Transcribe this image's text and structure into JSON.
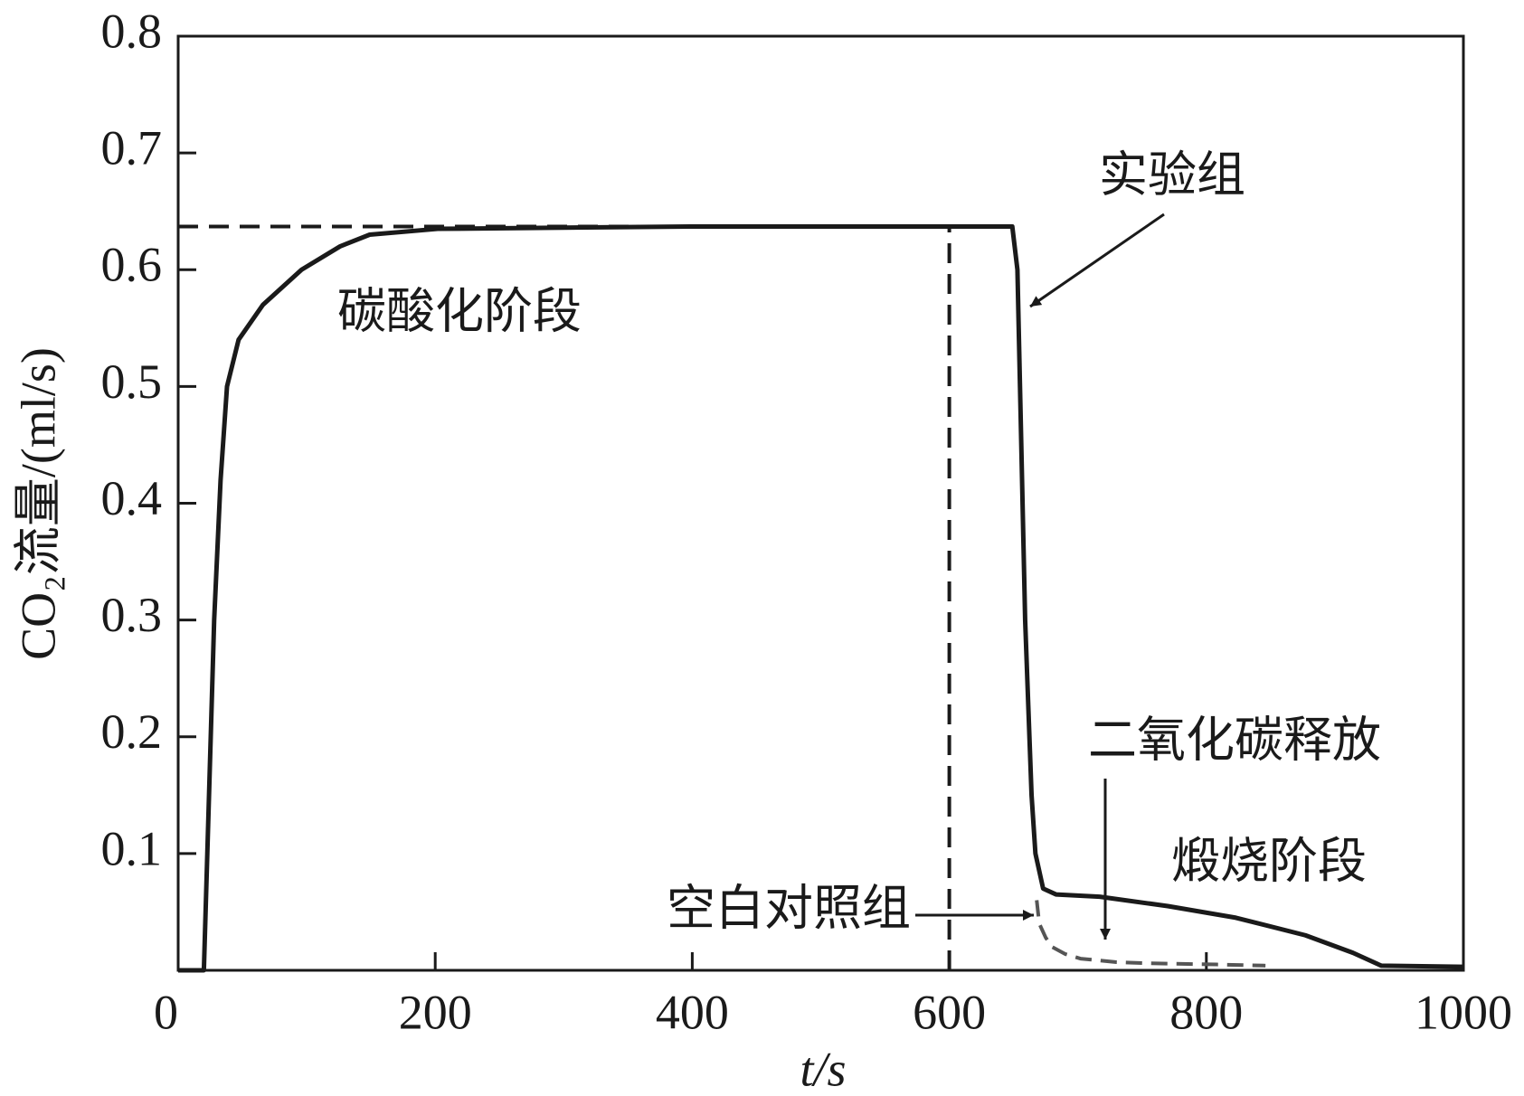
{
  "chart_data": {
    "type": "line",
    "x_label": "t/s",
    "y_label": "CO₂流量/(ml/s)",
    "xlim": [
      0,
      1000
    ],
    "ylim": [
      0,
      0.8
    ],
    "xticks": [
      0,
      200,
      400,
      600,
      800,
      1000
    ],
    "yticks": [
      0.1,
      0.2,
      0.3,
      0.4,
      0.5,
      0.6,
      0.7,
      0.8
    ],
    "series": [
      {
        "name": "实验组",
        "color": "#1a1a1a",
        "style": "solid",
        "x": [
          0,
          20,
          24,
          28,
          33,
          38,
          47,
          66,
          96,
          126,
          149,
          202,
          300,
          400,
          500,
          600,
          649,
          653,
          655,
          659,
          664,
          667,
          673,
          683,
          717,
          770,
          823,
          877,
          914,
          936,
          1000
        ],
        "values": [
          0,
          0,
          0.15,
          0.3,
          0.42,
          0.5,
          0.54,
          0.57,
          0.6,
          0.62,
          0.63,
          0.635,
          0.636,
          0.637,
          0.637,
          0.637,
          0.637,
          0.6,
          0.5,
          0.3,
          0.15,
          0.1,
          0.07,
          0.065,
          0.063,
          0.055,
          0.045,
          0.03,
          0.015,
          0.004,
          0.003
        ]
      },
      {
        "name": "空白对照组",
        "color": "#555555",
        "style": "dashed",
        "x": [
          668,
          670,
          675,
          680,
          690,
          702,
          730,
          755,
          808,
          846
        ],
        "values": [
          0.06,
          0.04,
          0.028,
          0.02,
          0.014,
          0.01,
          0.007,
          0.006,
          0.005,
          0.004
        ]
      }
    ],
    "reference_lines": [
      {
        "y": 0.637,
        "x": [
          0,
          600
        ]
      },
      {
        "x": 600,
        "y": [
          0,
          0.637
        ]
      }
    ],
    "annotations": [
      "碳酸化阶段",
      "二氧化碳释放",
      "煅烧阶段"
    ]
  }
}
